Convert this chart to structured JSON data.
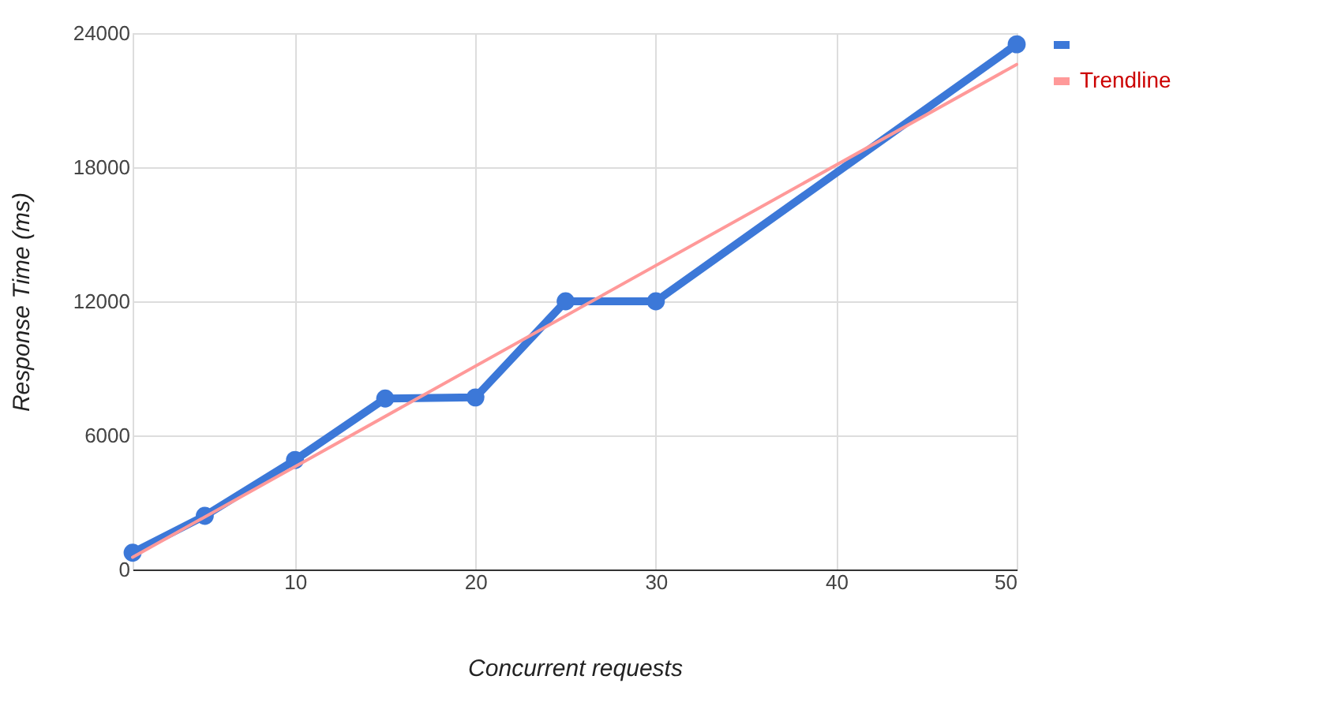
{
  "chart_data": {
    "type": "line",
    "xlabel": "Concurrent requests",
    "ylabel": "Response Time (ms)",
    "xlim": [
      1,
      50
    ],
    "xticks": [
      10,
      20,
      30,
      40,
      50
    ],
    "ylim": [
      0,
      24000
    ],
    "yticks": [
      0,
      6000,
      12000,
      18000,
      24000
    ],
    "grid": true,
    "legend": "right",
    "series": [
      {
        "color": "#3c78d8",
        "marker": "circle",
        "x": [
          1,
          5,
          10,
          15,
          20,
          25,
          30,
          50
        ],
        "values": [
          750,
          2400,
          4900,
          7650,
          7700,
          12000,
          12000,
          23500
        ]
      },
      {
        "name": "Trendline",
        "color": "#ff9999",
        "type": "line",
        "marker": "none",
        "x": [
          1,
          50
        ],
        "values": [
          550,
          22600
        ]
      }
    ]
  }
}
